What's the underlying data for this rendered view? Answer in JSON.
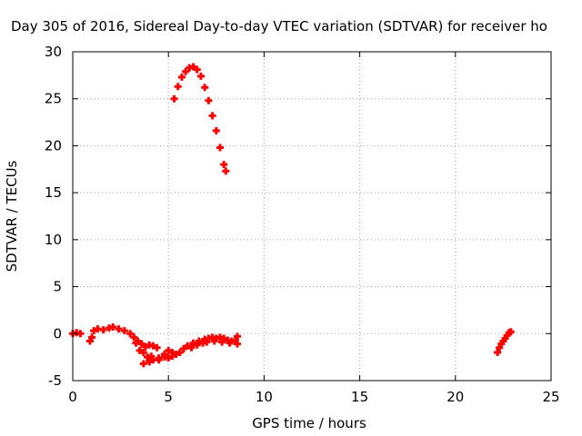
{
  "chart_data": {
    "type": "scatter",
    "title": "Day 305 of 2016, Sidereal Day-to-day VTEC variation (SDTVAR) for receiver ho",
    "xlabel": "GPS time / hours",
    "ylabel": "SDTVAR / TECUs",
    "xlim": [
      0,
      25
    ],
    "ylim": [
      -5,
      30
    ],
    "xticks": [
      "0",
      "5",
      "10",
      "15",
      "20",
      "25"
    ],
    "yticks": [
      "-5",
      "0",
      "5",
      "10",
      "15",
      "20",
      "25",
      "30"
    ],
    "grid": true,
    "marker_color": "#ff0000",
    "series": [
      {
        "points": [
          [
            0.0,
            0.0
          ],
          [
            0.2,
            0.1
          ],
          [
            0.4,
            0.0
          ],
          [
            0.9,
            -0.8
          ],
          [
            1.0,
            -0.4
          ],
          [
            1.1,
            0.3
          ],
          [
            1.3,
            0.5
          ],
          [
            1.6,
            0.4
          ],
          [
            1.9,
            0.6
          ],
          [
            2.1,
            0.7
          ],
          [
            2.4,
            0.5
          ],
          [
            2.7,
            0.3
          ],
          [
            3.0,
            0.0
          ],
          [
            3.2,
            -0.4
          ],
          [
            3.4,
            -0.8
          ],
          [
            3.6,
            -1.1
          ],
          [
            3.8,
            -1.4
          ],
          [
            4.0,
            -1.2
          ],
          [
            4.2,
            -1.3
          ],
          [
            4.4,
            -1.5
          ],
          [
            3.3,
            -1.0
          ],
          [
            3.5,
            -1.8
          ],
          [
            3.7,
            -2.0
          ],
          [
            3.9,
            -2.5
          ],
          [
            4.1,
            -2.4
          ],
          [
            3.7,
            -3.2
          ],
          [
            4.0,
            -3.0
          ],
          [
            4.2,
            -2.8
          ],
          [
            4.5,
            -2.6
          ],
          [
            4.8,
            -2.5
          ],
          [
            5.0,
            -2.6
          ],
          [
            5.2,
            -2.4
          ],
          [
            5.4,
            -2.2
          ],
          [
            5.6,
            -2.0
          ],
          [
            5.8,
            -1.6
          ],
          [
            6.0,
            -1.3
          ],
          [
            6.3,
            -1.0
          ],
          [
            6.6,
            -0.8
          ],
          [
            6.9,
            -0.6
          ],
          [
            7.1,
            -0.5
          ],
          [
            7.3,
            -0.4
          ],
          [
            7.5,
            -0.5
          ],
          [
            7.7,
            -0.4
          ],
          [
            7.9,
            -0.5
          ],
          [
            8.1,
            -0.7
          ],
          [
            8.3,
            -0.8
          ],
          [
            8.5,
            -0.7
          ],
          [
            8.6,
            -0.3
          ],
          [
            4.5,
            -2.8
          ],
          [
            4.8,
            -2.2
          ],
          [
            5.0,
            -1.8
          ],
          [
            5.2,
            -2.0
          ],
          [
            6.2,
            -1.5
          ],
          [
            6.5,
            -1.2
          ],
          [
            6.8,
            -1.0
          ],
          [
            7.0,
            -0.9
          ],
          [
            7.4,
            -0.8
          ],
          [
            7.8,
            -0.9
          ],
          [
            8.2,
            -1.0
          ],
          [
            8.6,
            -1.1
          ]
        ]
      },
      {
        "points": [
          [
            5.3,
            25.0
          ],
          [
            5.5,
            26.3
          ],
          [
            5.7,
            27.3
          ],
          [
            5.9,
            27.9
          ],
          [
            6.1,
            28.3
          ],
          [
            6.3,
            28.4
          ],
          [
            6.5,
            28.1
          ],
          [
            6.7,
            27.4
          ],
          [
            6.9,
            26.2
          ],
          [
            7.1,
            24.8
          ],
          [
            7.3,
            23.2
          ],
          [
            7.5,
            21.6
          ],
          [
            7.7,
            19.8
          ],
          [
            7.9,
            18.0
          ],
          [
            8.0,
            17.3
          ]
        ]
      },
      {
        "points": [
          [
            22.2,
            -2.0
          ],
          [
            22.3,
            -1.5
          ],
          [
            22.4,
            -1.1
          ],
          [
            22.5,
            -0.8
          ],
          [
            22.6,
            -0.5
          ],
          [
            22.7,
            -0.2
          ],
          [
            22.8,
            0.1
          ],
          [
            22.9,
            0.2
          ]
        ]
      }
    ]
  }
}
